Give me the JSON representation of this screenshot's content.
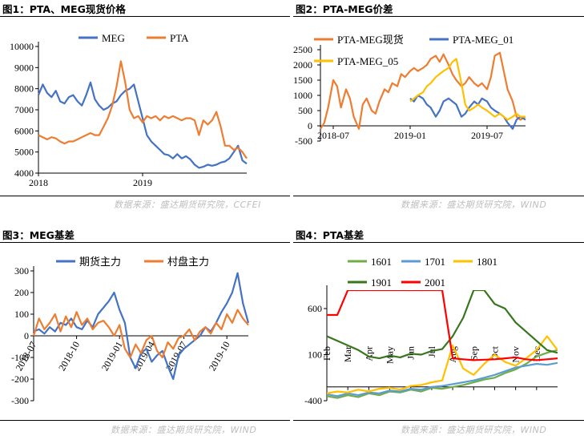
{
  "panels": [
    {
      "title": "图1：PTA、MEG现货价格",
      "source": "数据来源：盛达期货研究院，CCFEI"
    },
    {
      "title": "图2：PTA-MEG价差",
      "source": "数据来源：盛达期货研究院，WIND"
    },
    {
      "title": "图3：MEG基差",
      "source": "数据来源：盛达期货研究院，WIND"
    },
    {
      "title": "图4：PTA基差",
      "source": "数据来源：盛达期货研究院，WIND"
    }
  ],
  "chart_data": [
    {
      "type": "line",
      "title": "图1：PTA、MEG现货价格",
      "xlabel": "",
      "ylabel": "",
      "x_ticks": [
        "2018",
        "2019"
      ],
      "y_ticks": [
        4000,
        5000,
        6000,
        7000,
        8000,
        9000,
        10000
      ],
      "ylim": [
        4000,
        10000
      ],
      "xlim": [
        0,
        24
      ],
      "legend": "top",
      "grid": false,
      "series": [
        {
          "name": "MEG",
          "color": "#4472c4",
          "x": [
            0,
            0.5,
            1,
            1.5,
            2,
            2.5,
            3,
            3.5,
            4,
            4.5,
            5,
            5.5,
            6,
            6.5,
            7,
            7.5,
            8,
            8.5,
            9,
            9.5,
            10,
            10.5,
            11,
            11.5,
            12,
            12.5,
            13,
            13.5,
            14,
            14.5,
            15,
            15.5,
            16,
            16.5,
            17,
            17.5,
            18,
            18.5,
            19,
            19.5,
            20,
            20.5,
            21,
            21.5,
            22,
            22.5,
            23,
            23.5,
            24
          ],
          "values": [
            7700,
            8200,
            7800,
            7600,
            7900,
            7400,
            7300,
            7600,
            7700,
            7400,
            7200,
            7700,
            8300,
            7500,
            7200,
            7000,
            7100,
            7300,
            7400,
            7700,
            7900,
            8000,
            8200,
            7400,
            6600,
            5800,
            5500,
            5300,
            5100,
            4900,
            4850,
            4700,
            4900,
            4700,
            4800,
            4650,
            4400,
            4250,
            4300,
            4400,
            4350,
            4400,
            4500,
            4550,
            4700,
            5000,
            5300,
            4600,
            4450
          ]
        },
        {
          "name": "PTA",
          "color": "#ed7d31",
          "x": [
            0,
            0.5,
            1,
            1.5,
            2,
            2.5,
            3,
            3.5,
            4,
            4.5,
            5,
            5.5,
            6,
            6.5,
            7,
            7.5,
            8,
            8.5,
            9,
            9.5,
            10,
            10.5,
            11,
            11.5,
            12,
            12.5,
            13,
            13.5,
            14,
            14.5,
            15,
            15.5,
            16,
            16.5,
            17,
            17.5,
            18,
            18.5,
            19,
            19.5,
            20,
            20.5,
            21,
            21.5,
            22,
            22.5,
            23,
            23.5,
            24
          ],
          "values": [
            5800,
            5700,
            5600,
            5700,
            5650,
            5500,
            5400,
            5500,
            5500,
            5600,
            5700,
            5800,
            5900,
            5800,
            5800,
            6200,
            6600,
            7200,
            8100,
            9300,
            8300,
            7000,
            6600,
            6700,
            6400,
            6700,
            6600,
            6700,
            6500,
            6700,
            6600,
            6700,
            6600,
            6500,
            6600,
            6600,
            6500,
            5800,
            6500,
            6300,
            6500,
            6900,
            6200,
            5300,
            5300,
            5100,
            5200,
            5000,
            4700
          ]
        }
      ]
    },
    {
      "type": "line",
      "title": "图2：PTA-MEG价差",
      "xlabel": "",
      "ylabel": "",
      "x_ticks": [
        "2018-07",
        "2019-01",
        "2019-07"
      ],
      "y_ticks": [
        -500,
        0,
        500,
        1000,
        1500,
        2000,
        2500
      ],
      "ylim": [
        -500,
        2500
      ],
      "xlim": [
        0,
        16
      ],
      "legend": "top",
      "grid": false,
      "series": [
        {
          "name": "PTA-MEG现货",
          "color": "#ed7d31",
          "x": [
            0,
            0.3,
            0.6,
            1,
            1.3,
            1.6,
            2,
            2.3,
            2.6,
            3,
            3.3,
            3.6,
            4,
            4.3,
            4.6,
            5,
            5.3,
            5.6,
            6,
            6.3,
            6.6,
            7,
            7.3,
            7.6,
            8,
            8.3,
            8.6,
            9,
            9.3,
            9.6,
            10,
            10.3,
            10.6,
            11,
            11.3,
            11.6,
            12,
            12.3,
            12.6,
            13,
            13.3,
            13.6,
            14,
            14.3,
            14.6,
            15,
            15.3,
            15.6,
            16
          ],
          "values": [
            -100,
            100,
            600,
            1500,
            1300,
            600,
            1200,
            900,
            300,
            -100,
            700,
            900,
            500,
            400,
            800,
            1200,
            1100,
            1400,
            1300,
            1700,
            1600,
            1800,
            1900,
            1800,
            1900,
            2000,
            2200,
            2300,
            2100,
            2350,
            2000,
            1700,
            1500,
            1300,
            1400,
            1600,
            1400,
            1300,
            1400,
            1200,
            1600,
            2300,
            2400,
            1800,
            1200,
            800,
            300,
            200,
            300
          ]
        },
        {
          "name": "PTA-MEG_01",
          "color": "#4472c4",
          "x": [
            7,
            7.3,
            7.6,
            8,
            8.3,
            8.6,
            9,
            9.3,
            9.6,
            10,
            10.3,
            10.6,
            11,
            11.3,
            11.6,
            12,
            12.3,
            12.6,
            13,
            13.3,
            13.6,
            14,
            14.3,
            14.6,
            15,
            15.3,
            15.6,
            16
          ],
          "values": [
            900,
            800,
            1000,
            900,
            700,
            600,
            300,
            500,
            800,
            900,
            800,
            700,
            300,
            400,
            600,
            800,
            700,
            900,
            800,
            600,
            500,
            400,
            300,
            100,
            -100,
            200,
            300,
            200
          ]
        },
        {
          "name": "PTA-MEG_05",
          "color": "#ffc000",
          "x": [
            7,
            7.3,
            7.6,
            8,
            8.3,
            8.6,
            9,
            9.3,
            9.6,
            10,
            10.3,
            10.6,
            11,
            11.3,
            11.6,
            12,
            12.3,
            12.6,
            13,
            13.3,
            13.6,
            14,
            14.3,
            14.6,
            15,
            15.3,
            15.6,
            16
          ],
          "values": [
            800,
            900,
            1000,
            1100,
            1300,
            1400,
            1600,
            1700,
            1800,
            1900,
            2100,
            2200,
            1400,
            700,
            500,
            600,
            700,
            600,
            500,
            400,
            300,
            400,
            300,
            200,
            300,
            400,
            300,
            300
          ]
        }
      ]
    },
    {
      "type": "line",
      "title": "图3：MEG基差",
      "xlabel": "",
      "ylabel": "",
      "x_ticks": [
        "2018-07",
        "2018-10",
        "2019-01",
        "2019-04",
        "2019-07",
        "2019-10"
      ],
      "y_ticks": [
        -300,
        -200,
        -100,
        0,
        100,
        200,
        300
      ],
      "ylim": [
        -300,
        300
      ],
      "xlim": [
        0,
        20
      ],
      "legend": "top",
      "grid": false,
      "series": [
        {
          "name": "期货主力",
          "color": "#4472c4",
          "x": [
            0,
            0.5,
            1,
            1.5,
            2,
            2.5,
            3,
            3.5,
            4,
            4.5,
            5,
            5.5,
            6,
            6.5,
            7,
            7.5,
            8,
            8.5,
            9,
            9.5,
            10,
            10.5,
            11,
            11.5,
            12,
            12.5,
            13,
            13.5,
            14,
            14.5,
            15,
            15.5,
            16,
            16.5,
            17,
            17.5,
            18,
            18.5,
            19,
            19.5,
            20
          ],
          "values": [
            20,
            30,
            10,
            40,
            20,
            60,
            50,
            80,
            40,
            30,
            70,
            40,
            100,
            130,
            160,
            200,
            120,
            60,
            -100,
            -150,
            -80,
            -60,
            -120,
            -90,
            -70,
            -140,
            -200,
            -90,
            -60,
            -40,
            -20,
            0,
            40,
            20,
            60,
            110,
            150,
            200,
            290,
            150,
            60
          ]
        },
        {
          "name": "村盘主力",
          "color": "#ed7d31",
          "x": [
            0,
            0.5,
            1,
            1.5,
            2,
            2.5,
            3,
            3.5,
            4,
            4.5,
            5,
            5.5,
            6,
            6.5,
            7,
            7.5,
            8,
            8.5,
            9,
            9.5,
            10,
            10.5,
            11,
            11.5,
            12,
            12.5,
            13,
            13.5,
            14,
            14.5,
            15,
            15.5,
            16,
            16.5,
            17,
            17.5,
            18,
            18.5,
            19,
            19.5,
            20
          ],
          "values": [
            0,
            80,
            30,
            60,
            100,
            20,
            90,
            40,
            110,
            50,
            80,
            30,
            60,
            70,
            40,
            0,
            50,
            -60,
            -100,
            -40,
            -80,
            -20,
            0,
            -70,
            -100,
            -30,
            -60,
            -10,
            0,
            30,
            -20,
            20,
            40,
            10,
            60,
            30,
            100,
            60,
            120,
            80,
            50
          ]
        }
      ]
    },
    {
      "type": "line",
      "title": "图4：PTA基差",
      "xlabel": "",
      "ylabel": "",
      "x_ticks": [
        "Feb",
        "Mar",
        "Apr",
        "May",
        "Jun",
        "Jul",
        "Aug",
        "Sep",
        "Oct",
        "Nov",
        "Dec"
      ],
      "y_ticks": [
        -400,
        100,
        600
      ],
      "ylim": [
        -400,
        800
      ],
      "xlim": [
        0,
        11
      ],
      "legend": "top",
      "grid": false,
      "series": [
        {
          "name": "1601",
          "color": "#70ad47",
          "x": [
            0,
            0.5,
            1,
            1.5,
            2,
            2.5,
            3,
            3.5,
            4,
            4.5,
            5,
            5.5,
            6,
            6.5,
            7,
            7.5,
            8,
            8.5,
            9,
            9.5,
            10,
            10.5,
            11
          ],
          "values": [
            -350,
            -370,
            -340,
            -360,
            -320,
            -340,
            -300,
            -310,
            -280,
            -300,
            -260,
            -270,
            -250,
            -230,
            -200,
            -170,
            -150,
            -100,
            -60,
            0,
            80,
            120,
            150
          ]
        },
        {
          "name": "1701",
          "color": "#5b9bd5",
          "x": [
            0,
            0.5,
            1,
            1.5,
            2,
            2.5,
            3,
            3.5,
            4,
            4.5,
            5,
            5.5,
            6,
            6.5,
            7,
            7.5,
            8,
            8.5,
            9,
            9.5,
            10,
            10.5,
            11
          ],
          "values": [
            -330,
            -350,
            -320,
            -340,
            -310,
            -320,
            -290,
            -300,
            -270,
            -280,
            -250,
            -240,
            -220,
            -200,
            -180,
            -150,
            -120,
            -80,
            -40,
            -20,
            0,
            -10,
            10
          ]
        },
        {
          "name": "1801",
          "color": "#ffc000",
          "x": [
            0,
            0.5,
            1,
            1.5,
            2,
            2.5,
            3,
            3.5,
            4,
            4.5,
            5,
            5.5,
            6,
            6.5,
            7,
            7.5,
            8,
            8.5,
            9,
            9.5,
            10,
            10.5,
            11
          ],
          "values": [
            -320,
            -300,
            -310,
            -280,
            -300,
            -270,
            -260,
            -280,
            -240,
            -230,
            -200,
            -180,
            200,
            -50,
            -120,
            0,
            100,
            20,
            -20,
            60,
            150,
            300,
            150
          ]
        },
        {
          "name": "1901",
          "color": "#38761d",
          "x": [
            0,
            0.5,
            1,
            1.5,
            2,
            2.5,
            3,
            3.5,
            4,
            4.5,
            5,
            5.5,
            6,
            6.5,
            7,
            7.5,
            8,
            8.5,
            9,
            9.5,
            10,
            10.5,
            11
          ],
          "values": [
            300,
            250,
            200,
            150,
            80,
            60,
            90,
            70,
            110,
            100,
            140,
            160,
            300,
            500,
            800,
            800,
            650,
            600,
            450,
            350,
            250,
            150,
            120
          ]
        },
        {
          "name": "2001",
          "color": "#ff0000",
          "x": [
            0,
            0.5,
            1,
            1.5,
            2,
            2.5,
            3,
            3.5,
            4,
            4.5,
            5,
            5.5,
            6,
            6.5,
            7,
            7.5,
            8,
            8.5,
            9,
            9.5,
            10,
            10.5,
            11
          ],
          "values": [
            530,
            530,
            800,
            800,
            800,
            800,
            800,
            800,
            800,
            800,
            800,
            800,
            60,
            50,
            40,
            45,
            50,
            60,
            70,
            50,
            40,
            50,
            60
          ]
        }
      ]
    }
  ]
}
